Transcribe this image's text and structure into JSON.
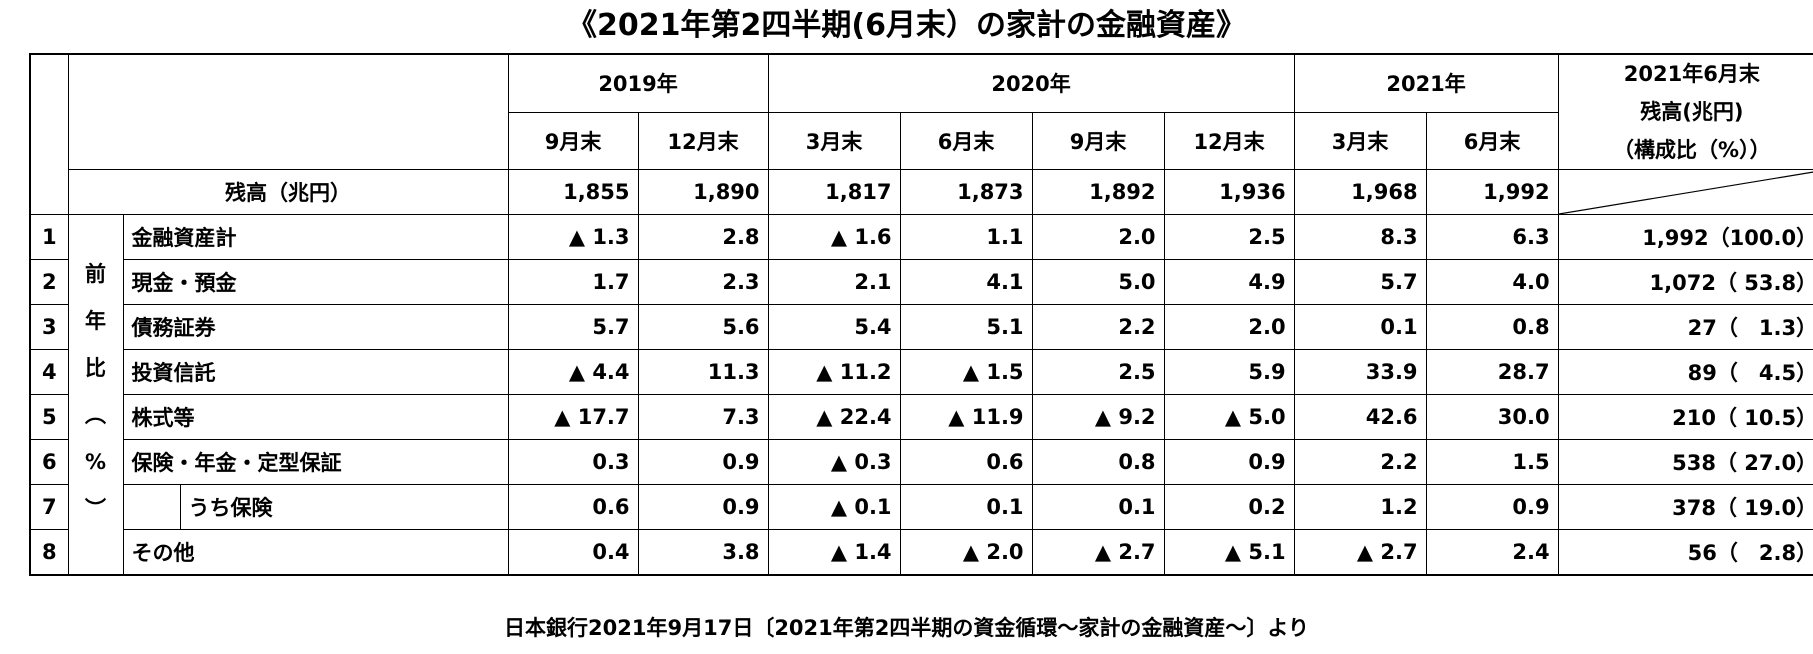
{
  "title": "《2021年第2四半期(6月末）の家計の金融資産》",
  "source": "日本銀行2021年9月17日〔2021年第2四半期の資金循環～家計の金融資産～〕より",
  "header": {
    "years": [
      "2019年",
      "2020年",
      "2021年"
    ],
    "months": [
      "9月末",
      "12月末",
      "3月末",
      "6月末",
      "9月末",
      "12月末",
      "3月末",
      "6月末"
    ],
    "right_col": [
      "2021年6月末",
      "残高(兆円)",
      "（構成比（%））"
    ]
  },
  "balance_row": {
    "label": "残高（兆円）",
    "values": [
      "1,855",
      "1,890",
      "1,817",
      "1,873",
      "1,892",
      "1,936",
      "1,968",
      "1,992"
    ]
  },
  "side_label": [
    "前",
    "年",
    "比",
    "︵",
    "%",
    "︶"
  ],
  "rows": [
    {
      "idx": "1",
      "label": "金融資産計",
      "indent": false,
      "values": [
        "▲ 1.3",
        "2.8",
        "▲ 1.6",
        "1.1",
        "2.0",
        "2.5",
        "8.3",
        "6.3"
      ],
      "total": "1,992（100.0）"
    },
    {
      "idx": "2",
      "label": "現金・預金",
      "indent": false,
      "values": [
        "1.7",
        "2.3",
        "2.1",
        "4.1",
        "5.0",
        "4.9",
        "5.7",
        "4.0"
      ],
      "total": "1,072（ 53.8）"
    },
    {
      "idx": "3",
      "label": "債務証券",
      "indent": false,
      "values": [
        "5.7",
        "5.6",
        "5.4",
        "5.1",
        "2.2",
        "2.0",
        "0.1",
        "0.8"
      ],
      "total": "27（　1.3）"
    },
    {
      "idx": "4",
      "label": "投資信託",
      "indent": false,
      "values": [
        "▲ 4.4",
        "11.3",
        "▲ 11.2",
        "▲ 1.5",
        "2.5",
        "5.9",
        "33.9",
        "28.7"
      ],
      "total": "89（　4.5）"
    },
    {
      "idx": "5",
      "label": "株式等",
      "indent": false,
      "values": [
        "▲ 17.7",
        "7.3",
        "▲ 22.4",
        "▲ 11.9",
        "▲ 9.2",
        "▲ 5.0",
        "42.6",
        "30.0"
      ],
      "total": "210（ 10.5）"
    },
    {
      "idx": "6",
      "label": "保険・年金・定型保証",
      "indent": false,
      "values": [
        "0.3",
        "0.9",
        "▲ 0.3",
        "0.6",
        "0.8",
        "0.9",
        "2.2",
        "1.5"
      ],
      "total": "538（ 27.0）"
    },
    {
      "idx": "7",
      "label": "うち保険",
      "indent": true,
      "values": [
        "0.6",
        "0.9",
        "▲ 0.1",
        "0.1",
        "0.1",
        "0.2",
        "1.2",
        "0.9"
      ],
      "total": "378（ 19.0）"
    },
    {
      "idx": "8",
      "label": "その他",
      "indent": false,
      "values": [
        "0.4",
        "3.8",
        "▲ 1.4",
        "▲ 2.0",
        "▲ 2.7",
        "▲ 5.1",
        "▲ 2.7",
        "2.4"
      ],
      "total": "56（　2.8）"
    }
  ]
}
